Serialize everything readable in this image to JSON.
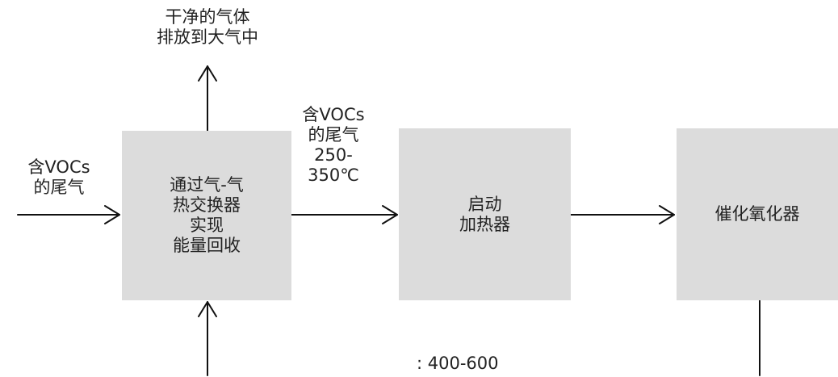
{
  "diagram": {
    "output_label": {
      "line1": "干净的气体",
      "line2": "排放到大气中"
    },
    "input_label": {
      "line1": "含VOCs",
      "line2": "的尾气"
    },
    "mid_label": {
      "line1": "含VOCs",
      "line2": "的尾气",
      "line3": "250-",
      "line4": "350℃"
    },
    "boxes": {
      "heat_exchanger": {
        "line1": "通过气-气",
        "line2": "热交换器",
        "line3": "实现",
        "line4": "能量回收"
      },
      "startup_heater": {
        "line1": "启动",
        "line2": "加热器"
      },
      "catalytic_oxidizer": {
        "line1": "催化氧化器"
      }
    },
    "bottom_label": ": 400-600"
  },
  "colors": {
    "box_fill": "#dcdcdc",
    "arrow": "#111111",
    "text": "#222222"
  }
}
